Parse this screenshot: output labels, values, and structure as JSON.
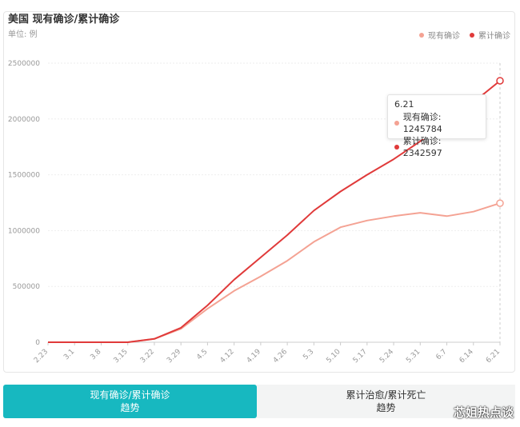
{
  "header": {
    "title": "美国 现有确诊/累计确诊",
    "unit": "单位: 例"
  },
  "colors": {
    "current": "#f4a293",
    "cumulative": "#e03a3a",
    "tab_active": "#17b8c0"
  },
  "legend": [
    {
      "label": "现有确诊",
      "color": "#f4a293"
    },
    {
      "label": "累计确诊",
      "color": "#e03a3a"
    }
  ],
  "tooltip": {
    "date": "6.21",
    "rows": [
      {
        "text": "现有确诊: 1245784",
        "color": "#f4a293"
      },
      {
        "text": "累计确诊: 2342597",
        "color": "#e03a3a"
      }
    ]
  },
  "chart_data": {
    "type": "line",
    "title": "美国 现有确诊/累计确诊",
    "ylabel": "单位: 例",
    "ylim": [
      0,
      2500000
    ],
    "yticks": [
      "0",
      "500000",
      "1000000",
      "1500000",
      "2000000",
      "2500000"
    ],
    "xticks": [
      "2.23",
      "3.1",
      "3.8",
      "3.15",
      "3.22",
      "3.29",
      "4.5",
      "4.12",
      "4.19",
      "4.26",
      "5.3",
      "5.10",
      "5.17",
      "5.24",
      "5.31",
      "6.7",
      "6.14",
      "6.21"
    ],
    "legend_position": "top-right",
    "grid": true,
    "series": [
      {
        "name": "现有确诊",
        "color": "#f4a293",
        "values": [
          0,
          0,
          0,
          0,
          30000,
          120000,
          300000,
          460000,
          590000,
          730000,
          900000,
          1030000,
          1090000,
          1130000,
          1160000,
          1130000,
          1170000,
          1245784
        ]
      },
      {
        "name": "累计确诊",
        "color": "#e03a3a",
        "values": [
          0,
          0,
          0,
          0,
          30000,
          130000,
          330000,
          560000,
          760000,
          960000,
          1180000,
          1350000,
          1500000,
          1640000,
          1800000,
          1970000,
          2150000,
          2342597
        ]
      }
    ]
  },
  "tabs": [
    {
      "line1": "现有确诊/累计确诊",
      "line2": "趋势"
    },
    {
      "line1": "累计治愈/累计死亡",
      "line2": "趋势"
    }
  ],
  "watermark": "芯姐热点谈"
}
